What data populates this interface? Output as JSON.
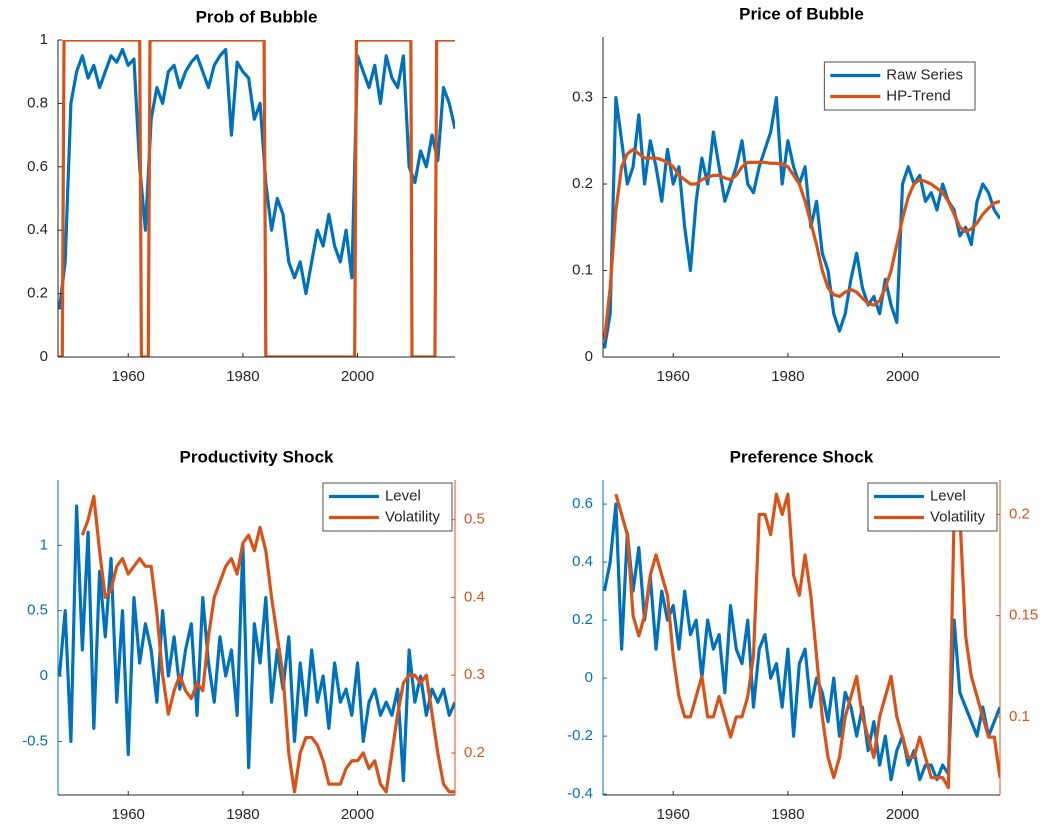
{
  "chart_data": [
    {
      "type": "line",
      "title": "Prob of Bubble",
      "x": [
        1948,
        1949,
        1950,
        1951,
        1952,
        1953,
        1954,
        1955,
        1956,
        1957,
        1958,
        1959,
        1960,
        1961,
        1962,
        1963,
        1964,
        1965,
        1966,
        1967,
        1968,
        1969,
        1970,
        1971,
        1972,
        1973,
        1974,
        1975,
        1976,
        1977,
        1978,
        1979,
        1980,
        1981,
        1982,
        1983,
        1984,
        1985,
        1986,
        1987,
        1988,
        1989,
        1990,
        1991,
        1992,
        1993,
        1994,
        1995,
        1996,
        1997,
        1998,
        1999,
        2000,
        2001,
        2002,
        2003,
        2004,
        2005,
        2006,
        2007,
        2008,
        2009,
        2010,
        2011,
        2012,
        2013,
        2014,
        2015,
        2016,
        2017
      ],
      "series": [
        {
          "color": "#0072bd",
          "values": [
            0.15,
            0.3,
            0.8,
            0.9,
            0.95,
            0.88,
            0.92,
            0.85,
            0.9,
            0.95,
            0.93,
            0.97,
            0.92,
            0.94,
            0.6,
            0.4,
            0.75,
            0.85,
            0.8,
            0.9,
            0.92,
            0.85,
            0.9,
            0.93,
            0.95,
            0.9,
            0.85,
            0.92,
            0.95,
            0.97,
            0.7,
            0.93,
            0.9,
            0.88,
            0.75,
            0.8,
            0.55,
            0.4,
            0.5,
            0.45,
            0.3,
            0.25,
            0.3,
            0.2,
            0.3,
            0.4,
            0.35,
            0.45,
            0.35,
            0.3,
            0.4,
            0.25,
            0.95,
            0.9,
            0.85,
            0.92,
            0.8,
            0.95,
            0.88,
            0.85,
            0.95,
            0.6,
            0.55,
            0.65,
            0.6,
            0.7,
            0.62,
            0.85,
            0.8,
            0.72
          ]
        },
        {
          "color": "#d95319",
          "x": [
            1947.75,
            1948.5,
            1948.8,
            1962,
            1962.3,
            1963.5,
            1963.8,
            1983.7,
            1984,
            1999.5,
            1999.8,
            2009.3,
            2009.5,
            2013.5,
            2013.8,
            2017
          ],
          "values": [
            0,
            0,
            1,
            1,
            0,
            0,
            1,
            1,
            0,
            0,
            1,
            1,
            0,
            0,
            1,
            1
          ]
        }
      ],
      "xlim": [
        1947.75,
        2017
      ],
      "xticks": [
        1960,
        1980,
        2000
      ],
      "ylim": [
        0,
        1
      ],
      "yticks": [
        0,
        0.2,
        0.4,
        0.6,
        0.8,
        1
      ]
    },
    {
      "type": "line",
      "title": "Price of Bubble",
      "x": [
        1948,
        1949,
        1950,
        1951,
        1952,
        1953,
        1954,
        1955,
        1956,
        1957,
        1958,
        1959,
        1960,
        1961,
        1962,
        1963,
        1964,
        1965,
        1966,
        1967,
        1968,
        1969,
        1970,
        1971,
        1972,
        1973,
        1974,
        1975,
        1976,
        1977,
        1978,
        1979,
        1980,
        1981,
        1982,
        1983,
        1984,
        1985,
        1986,
        1987,
        1988,
        1989,
        1990,
        1991,
        1992,
        1993,
        1994,
        1995,
        1996,
        1997,
        1998,
        1999,
        2000,
        2001,
        2002,
        2003,
        2004,
        2005,
        2006,
        2007,
        2008,
        2009,
        2010,
        2011,
        2012,
        2013,
        2014,
        2015,
        2016,
        2017
      ],
      "series": [
        {
          "name": "Raw Series",
          "color": "#0072bd",
          "values": [
            0.01,
            0.05,
            0.3,
            0.25,
            0.2,
            0.22,
            0.28,
            0.2,
            0.25,
            0.22,
            0.18,
            0.24,
            0.2,
            0.22,
            0.15,
            0.1,
            0.18,
            0.23,
            0.2,
            0.26,
            0.22,
            0.18,
            0.2,
            0.22,
            0.25,
            0.2,
            0.19,
            0.22,
            0.24,
            0.26,
            0.3,
            0.2,
            0.25,
            0.22,
            0.2,
            0.22,
            0.15,
            0.18,
            0.12,
            0.1,
            0.05,
            0.03,
            0.05,
            0.09,
            0.12,
            0.08,
            0.06,
            0.07,
            0.05,
            0.09,
            0.06,
            0.04,
            0.2,
            0.22,
            0.2,
            0.21,
            0.18,
            0.19,
            0.17,
            0.2,
            0.18,
            0.17,
            0.14,
            0.15,
            0.13,
            0.18,
            0.2,
            0.19,
            0.17,
            0.16
          ]
        },
        {
          "name": "HP-Trend",
          "color": "#d95319",
          "values": [
            0.02,
            0.08,
            0.17,
            0.22,
            0.235,
            0.24,
            0.235,
            0.23,
            0.23,
            0.23,
            0.228,
            0.225,
            0.22,
            0.21,
            0.205,
            0.2,
            0.2,
            0.205,
            0.208,
            0.21,
            0.21,
            0.207,
            0.205,
            0.21,
            0.22,
            0.225,
            0.225,
            0.225,
            0.225,
            0.224,
            0.224,
            0.223,
            0.22,
            0.21,
            0.2,
            0.18,
            0.155,
            0.13,
            0.1,
            0.08,
            0.072,
            0.07,
            0.075,
            0.078,
            0.075,
            0.068,
            0.062,
            0.06,
            0.065,
            0.08,
            0.1,
            0.13,
            0.16,
            0.185,
            0.2,
            0.205,
            0.203,
            0.2,
            0.195,
            0.19,
            0.18,
            0.165,
            0.15,
            0.145,
            0.148,
            0.155,
            0.165,
            0.172,
            0.178,
            0.18
          ]
        }
      ],
      "legend": "upper right",
      "xlim": [
        1947.75,
        2017
      ],
      "xticks": [
        1960,
        1980,
        2000
      ],
      "ylim": [
        0,
        0.37
      ],
      "yticks": [
        0,
        0.1,
        0.2,
        0.3
      ]
    },
    {
      "type": "line",
      "title": "Productivity Shock",
      "x": [
        1948,
        1949,
        1950,
        1951,
        1952,
        1953,
        1954,
        1955,
        1956,
        1957,
        1958,
        1959,
        1960,
        1961,
        1962,
        1963,
        1964,
        1965,
        1966,
        1967,
        1968,
        1969,
        1970,
        1971,
        1972,
        1973,
        1974,
        1975,
        1976,
        1977,
        1978,
        1979,
        1980,
        1981,
        1982,
        1983,
        1984,
        1985,
        1986,
        1987,
        1988,
        1989,
        1990,
        1991,
        1992,
        1993,
        1994,
        1995,
        1996,
        1997,
        1998,
        1999,
        2000,
        2001,
        2002,
        2003,
        2004,
        2005,
        2006,
        2007,
        2008,
        2009,
        2010,
        2011,
        2012,
        2013,
        2014,
        2015,
        2016,
        2017
      ],
      "series": [
        {
          "name": "Level",
          "color": "#0072bd",
          "values": [
            0.0,
            0.5,
            -0.5,
            1.3,
            0.2,
            1.1,
            -0.4,
            0.8,
            0.3,
            0.9,
            -0.2,
            0.5,
            -0.6,
            0.6,
            0.1,
            0.4,
            0.2,
            -0.2,
            0.5,
            0.0,
            0.3,
            -0.1,
            0.2,
            0.4,
            -0.3,
            0.6,
            0.1,
            -0.2,
            0.3,
            0.0,
            0.2,
            -0.3,
            1.0,
            -0.7,
            0.4,
            0.1,
            0.6,
            -0.2,
            0.2,
            -0.1,
            0.3,
            -0.5,
            0.1,
            -0.3,
            0.2,
            -0.2,
            0.0,
            -0.4,
            0.1,
            -0.2,
            -0.1,
            -0.3,
            0.1,
            -0.5,
            -0.2,
            -0.1,
            -0.3,
            -0.2,
            -0.3,
            -0.1,
            -0.8,
            0.2,
            -0.2,
            0.0,
            -0.3,
            -0.1,
            -0.2,
            -0.1,
            -0.3,
            -0.2
          ]
        },
        {
          "name": "Volatility",
          "color": "#d95319",
          "axis": "y2",
          "values": [
            null,
            null,
            null,
            null,
            0.48,
            0.5,
            0.53,
            0.46,
            0.4,
            0.41,
            0.44,
            0.45,
            0.43,
            0.44,
            0.45,
            0.44,
            0.44,
            0.38,
            0.3,
            0.25,
            0.28,
            0.3,
            0.28,
            0.27,
            0.29,
            0.28,
            0.35,
            0.4,
            0.42,
            0.44,
            0.45,
            0.43,
            0.47,
            0.48,
            0.46,
            0.49,
            0.46,
            0.4,
            0.35,
            0.3,
            0.2,
            0.15,
            0.2,
            0.22,
            0.22,
            0.21,
            0.19,
            0.16,
            0.16,
            0.16,
            0.18,
            0.19,
            0.19,
            0.2,
            0.18,
            0.19,
            0.16,
            0.15,
            0.2,
            0.25,
            0.29,
            0.3,
            0.3,
            0.29,
            0.3,
            0.25,
            0.2,
            0.16,
            0.15,
            0.15
          ]
        }
      ],
      "legend": "upper right",
      "xlim": [
        1947.75,
        2017
      ],
      "xticks": [
        1960,
        1980,
        2000
      ],
      "ylim": [
        -0.91,
        1.5
      ],
      "yticks": [
        -0.5,
        0,
        0.5,
        1
      ],
      "y2lim": [
        0.146,
        0.551
      ],
      "y2ticks": [
        0.2,
        0.3,
        0.4,
        0.5
      ]
    },
    {
      "type": "line",
      "title": "Preference Shock",
      "x": [
        1948,
        1949,
        1950,
        1951,
        1952,
        1953,
        1954,
        1955,
        1956,
        1957,
        1958,
        1959,
        1960,
        1961,
        1962,
        1963,
        1964,
        1965,
        1966,
        1967,
        1968,
        1969,
        1970,
        1971,
        1972,
        1973,
        1974,
        1975,
        1976,
        1977,
        1978,
        1979,
        1980,
        1981,
        1982,
        1983,
        1984,
        1985,
        1986,
        1987,
        1988,
        1989,
        1990,
        1991,
        1992,
        1993,
        1994,
        1995,
        1996,
        1997,
        1998,
        1999,
        2000,
        2001,
        2002,
        2003,
        2004,
        2005,
        2006,
        2007,
        2008,
        2009,
        2010,
        2011,
        2012,
        2013,
        2014,
        2015,
        2016,
        2017
      ],
      "series": [
        {
          "name": "Level",
          "color": "#0072bd",
          "values": [
            0.3,
            0.4,
            0.6,
            0.1,
            0.5,
            0.3,
            0.45,
            0.2,
            0.35,
            0.1,
            0.3,
            0.2,
            0.25,
            0.1,
            0.3,
            0.15,
            0.2,
            0.0,
            0.2,
            0.1,
            0.15,
            -0.05,
            0.25,
            0.1,
            0.05,
            0.2,
            -0.1,
            0.1,
            0.15,
            0.0,
            0.05,
            -0.1,
            0.1,
            -0.2,
            0.05,
            0.1,
            -0.1,
            0.0,
            -0.05,
            -0.15,
            0.0,
            -0.2,
            -0.05,
            -0.1,
            -0.2,
            -0.1,
            -0.25,
            -0.15,
            -0.3,
            -0.2,
            -0.35,
            -0.25,
            -0.2,
            -0.3,
            -0.25,
            -0.35,
            -0.3,
            -0.3,
            -0.35,
            -0.3,
            -0.33,
            0.2,
            -0.05,
            -0.1,
            -0.15,
            -0.2,
            -0.1,
            -0.2,
            -0.15,
            -0.1
          ]
        },
        {
          "name": "Volatility",
          "color": "#d95319",
          "axis": "y2",
          "values": [
            null,
            null,
            0.21,
            0.2,
            0.19,
            0.15,
            0.14,
            0.15,
            0.17,
            0.18,
            0.17,
            0.16,
            0.13,
            0.11,
            0.1,
            0.1,
            0.11,
            0.12,
            0.1,
            0.1,
            0.11,
            0.1,
            0.09,
            0.1,
            0.1,
            0.11,
            0.13,
            0.2,
            0.2,
            0.19,
            0.21,
            0.2,
            0.21,
            0.17,
            0.16,
            0.18,
            0.16,
            0.13,
            0.1,
            0.08,
            0.07,
            0.08,
            0.1,
            0.11,
            0.12,
            0.1,
            0.09,
            0.08,
            0.1,
            0.11,
            0.12,
            0.1,
            0.09,
            0.08,
            0.08,
            0.09,
            0.08,
            0.07,
            0.07,
            0.07,
            0.065,
            0.2,
            0.2,
            0.14,
            0.12,
            0.11,
            0.1,
            0.09,
            0.09,
            0.07
          ]
        }
      ],
      "legend": "upper right",
      "xlim": [
        1947.75,
        2017
      ],
      "xticks": [
        1960,
        1980,
        2000
      ],
      "ylim": [
        -0.403,
        0.683
      ],
      "yticks": [
        -0.4,
        -0.2,
        0,
        0.2,
        0.4,
        0.6
      ],
      "y2lim": [
        0.0614,
        0.217
      ],
      "y2ticks": [
        0.1,
        0.15,
        0.2
      ]
    }
  ]
}
